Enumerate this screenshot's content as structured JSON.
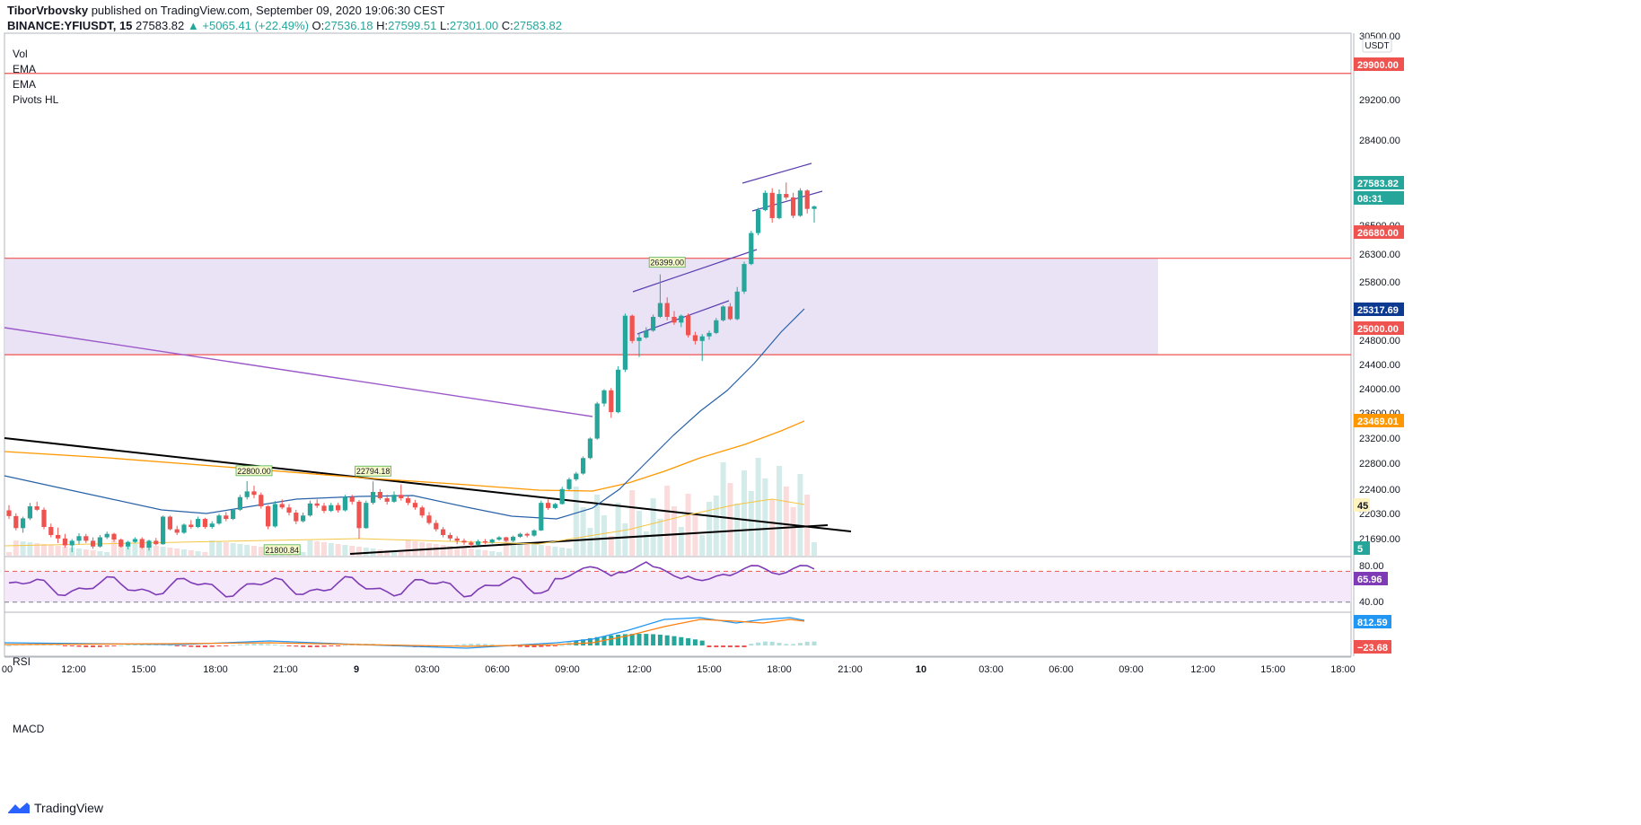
{
  "header": {
    "author": "TiborVrbovsky",
    "published": "published on TradingView.com, September 09, 2020 19:06:30 CEST"
  },
  "ohlc": {
    "symbol": "BINANCE:YFIUSDT, 15",
    "last": "27583.82",
    "change": "▲ +5065.41 (+22.49%)",
    "o_label": "O:",
    "o": "27536.18",
    "h_label": "H:",
    "h": "27599.51",
    "l_label": "L:",
    "l": "27301.00",
    "c_label": "C:",
    "c": "27583.82"
  },
  "legend": [
    "Vol",
    "EMA",
    "EMA",
    "Pivots HL"
  ],
  "panes": {
    "rsi": "RSI",
    "macd": "MACD"
  },
  "footer": {
    "brand": "TradingView"
  },
  "colors": {
    "up": "#26a69a",
    "down": "#ef5350",
    "zone": "#e8e0f5",
    "ema_fast": "#2962a8",
    "ema_slow": "#ff9800",
    "rsi": "#7e3bb5",
    "channel": "#5b3fb0",
    "macd": "#2196f3",
    "signal": "#ff7f0e"
  },
  "chart_data": {
    "type": "candlestick",
    "symbol": "BINANCE:YFIUSDT",
    "interval": "15",
    "currency": "USDT",
    "price_axis_ticks": [
      "30500.00",
      "29200.00",
      "28400.00",
      "26300.00",
      "25800.00",
      "24800.00",
      "24400.00",
      "24000.00",
      "23200.00",
      "22800.00",
      "22400.00",
      "22030.00",
      "21690.00"
    ],
    "price_axis_partial_labels": [
      "26500.00",
      "23600.00"
    ],
    "price_range": [
      21500,
      30600
    ],
    "time_axis_labels": [
      "00",
      "12:00",
      "15:00",
      "18:00",
      "21:00",
      "9",
      "03:00",
      "06:00",
      "09:00",
      "12:00",
      "15:00",
      "18:00",
      "21:00",
      "10",
      "03:00",
      "06:00",
      "09:00",
      "12:00",
      "15:00",
      "18:00"
    ],
    "price_tags": [
      {
        "value": "29900.00",
        "color": "#ef5350"
      },
      {
        "value": "27583.82",
        "color": "#26a69a"
      },
      {
        "value": "08:31",
        "color": "#26a69a"
      },
      {
        "value": "26680.00",
        "color": "#ef5350"
      },
      {
        "value": "25317.69",
        "color": "#0d3a91"
      },
      {
        "value": "25000.00",
        "color": "#ef5350"
      },
      {
        "value": "23469.01",
        "color": "#ff9800"
      },
      {
        "value": "45",
        "color": "#fff3bf"
      },
      {
        "value": "5",
        "color": "#26a69a"
      }
    ],
    "horizontal_levels": [
      29900,
      26680,
      25000
    ],
    "zone": {
      "from": 25000,
      "to": 26680
    },
    "pivot_labels": [
      "26399.00",
      "22800.00",
      "22794.18",
      "21800.84"
    ],
    "candles": [
      [
        22290,
        22380,
        22140,
        22190
      ],
      [
        22190,
        22240,
        21940,
        21980
      ],
      [
        21980,
        22180,
        21900,
        22150
      ],
      [
        22150,
        22420,
        22120,
        22360
      ],
      [
        22360,
        22440,
        22280,
        22300
      ],
      [
        22300,
        22340,
        21960,
        22000
      ],
      [
        22000,
        22060,
        21820,
        21860
      ],
      [
        21860,
        21990,
        21720,
        21800
      ],
      [
        21800,
        21880,
        21640,
        21680
      ],
      [
        21680,
        21790,
        21560,
        21760
      ],
      [
        21760,
        21890,
        21700,
        21840
      ],
      [
        21840,
        21880,
        21720,
        21760
      ],
      [
        21760,
        21820,
        21620,
        21660
      ],
      [
        21660,
        21860,
        21640,
        21820
      ],
      [
        21820,
        21920,
        21790,
        21880
      ],
      [
        21880,
        21900,
        21740,
        21780
      ],
      [
        21780,
        21800,
        21640,
        21660
      ],
      [
        21660,
        21760,
        21610,
        21740
      ],
      [
        21740,
        21820,
        21720,
        21790
      ],
      [
        21790,
        21820,
        21620,
        21640
      ],
      [
        21640,
        21780,
        21590,
        21760
      ],
      [
        21760,
        21810,
        21680,
        21700
      ],
      [
        21700,
        22200,
        21690,
        22180
      ],
      [
        22180,
        22200,
        21940,
        21960
      ],
      [
        21960,
        22020,
        21860,
        21900
      ],
      [
        21900,
        22060,
        21880,
        22040
      ],
      [
        22040,
        22120,
        21970,
        22000
      ],
      [
        22000,
        22180,
        21980,
        22140
      ],
      [
        22140,
        22160,
        21970,
        22000
      ],
      [
        22000,
        22100,
        21970,
        22060
      ],
      [
        22060,
        22230,
        22040,
        22200
      ],
      [
        22200,
        22260,
        22100,
        22140
      ],
      [
        22140,
        22320,
        22120,
        22300
      ],
      [
        22300,
        22560,
        22280,
        22520
      ],
      [
        22520,
        22800,
        22480,
        22620
      ],
      [
        22620,
        22720,
        22500,
        22560
      ],
      [
        22560,
        22600,
        22320,
        22360
      ],
      [
        22360,
        22380,
        21960,
        22010
      ],
      [
        22010,
        22450,
        21990,
        22400
      ],
      [
        22400,
        22480,
        22310,
        22340
      ],
      [
        22340,
        22400,
        22200,
        22250
      ],
      [
        22250,
        22300,
        22050,
        22100
      ],
      [
        22100,
        22250,
        22080,
        22200
      ],
      [
        22200,
        22460,
        22180,
        22410
      ],
      [
        22410,
        22480,
        22330,
        22370
      ],
      [
        22370,
        22420,
        22240,
        22280
      ],
      [
        22280,
        22420,
        22260,
        22380
      ],
      [
        22380,
        22420,
        22250,
        22290
      ],
      [
        22290,
        22560,
        22270,
        22520
      ],
      [
        22520,
        22560,
        22390,
        22440
      ],
      [
        22440,
        22470,
        21800,
        21980
      ],
      [
        21980,
        22460,
        21970,
        22420
      ],
      [
        22420,
        22794,
        22390,
        22610
      ],
      [
        22610,
        22660,
        22470,
        22500
      ],
      [
        22500,
        22560,
        22390,
        22440
      ],
      [
        22440,
        22620,
        22420,
        22560
      ],
      [
        22560,
        22740,
        22460,
        22500
      ],
      [
        22500,
        22540,
        22380,
        22420
      ],
      [
        22420,
        22470,
        22300,
        22340
      ],
      [
        22340,
        22370,
        22160,
        22200
      ],
      [
        22200,
        22260,
        22040,
        22070
      ],
      [
        22070,
        22120,
        21920,
        21960
      ],
      [
        21960,
        22000,
        21820,
        21860
      ],
      [
        21860,
        21900,
        21760,
        21800
      ],
      [
        21800,
        21840,
        21700,
        21760
      ],
      [
        21760,
        21800,
        21690,
        21730
      ],
      [
        21730,
        21760,
        21650,
        21690
      ],
      [
        21690,
        21780,
        21680,
        21750
      ],
      [
        21750,
        21790,
        21700,
        21730
      ],
      [
        21730,
        21800,
        21710,
        21780
      ],
      [
        21780,
        21840,
        21760,
        21820
      ],
      [
        21820,
        21830,
        21740,
        21760
      ],
      [
        21760,
        21850,
        21740,
        21830
      ],
      [
        21830,
        21900,
        21810,
        21880
      ],
      [
        21880,
        21900,
        21820,
        21850
      ],
      [
        21850,
        21960,
        21830,
        21940
      ],
      [
        21940,
        22460,
        21930,
        22420
      ],
      [
        22420,
        22480,
        22300,
        22330
      ],
      [
        22330,
        22420,
        22310,
        22400
      ],
      [
        22400,
        22700,
        22390,
        22660
      ],
      [
        22660,
        22860,
        22640,
        22830
      ],
      [
        22830,
        22960,
        22800,
        22930
      ],
      [
        22930,
        23230,
        22910,
        23200
      ],
      [
        23200,
        23560,
        23180,
        23540
      ],
      [
        23540,
        24180,
        23520,
        24150
      ],
      [
        24150,
        24400,
        24100,
        24380
      ],
      [
        24380,
        24420,
        23900,
        24000
      ],
      [
        24000,
        24800,
        23980,
        24740
      ],
      [
        24740,
        25720,
        24700,
        25680
      ],
      [
        25680,
        25700,
        25200,
        25240
      ],
      [
        25240,
        25380,
        24960,
        25300
      ],
      [
        25300,
        25480,
        25280,
        25420
      ],
      [
        25420,
        25700,
        25400,
        25660
      ],
      [
        25660,
        26399,
        25640,
        25900
      ],
      [
        25900,
        26000,
        25600,
        25660
      ],
      [
        25660,
        25760,
        25520,
        25560
      ],
      [
        25560,
        25700,
        25480,
        25680
      ],
      [
        25680,
        25720,
        25300,
        25340
      ],
      [
        25340,
        25400,
        25180,
        25240
      ],
      [
        25240,
        25360,
        24890,
        25320
      ],
      [
        25320,
        25420,
        25260,
        25380
      ],
      [
        25380,
        25640,
        25360,
        25600
      ],
      [
        25600,
        25860,
        25580,
        25840
      ],
      [
        25840,
        25900,
        25600,
        25620
      ],
      [
        25620,
        26180,
        25600,
        26100
      ],
      [
        26100,
        26620,
        26060,
        26580
      ],
      [
        26580,
        27160,
        26560,
        27120
      ],
      [
        27120,
        27560,
        27080,
        27520
      ],
      [
        27520,
        27860,
        27500,
        27820
      ],
      [
        27820,
        27900,
        27300,
        27380
      ],
      [
        27380,
        27880,
        27360,
        27800
      ],
      [
        27800,
        28000,
        27700,
        27740
      ],
      [
        27740,
        27820,
        27380,
        27420
      ],
      [
        27420,
        27900,
        27400,
        27860
      ],
      [
        27860,
        27880,
        27460,
        27540
      ],
      [
        27540,
        27600,
        27300,
        27584
      ]
    ],
    "rsi": {
      "levels": [
        70,
        30
      ],
      "axis_ticks": [
        "80.00",
        "40.00"
      ],
      "last": "65.96"
    },
    "macd": {
      "last_macd": "812.59",
      "last_signal": "−23.68"
    }
  }
}
